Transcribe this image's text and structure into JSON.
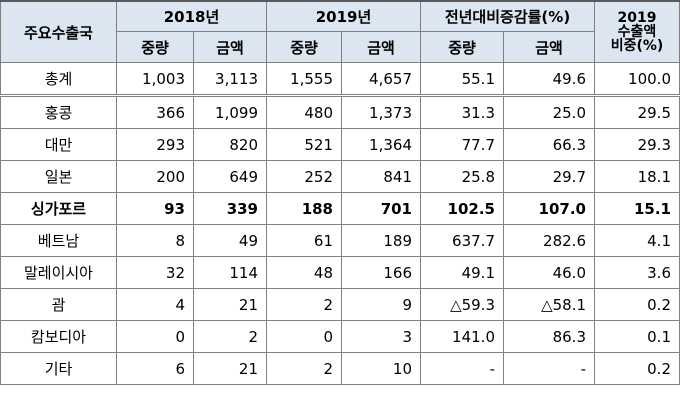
{
  "header": {
    "col_country": "주요수출국",
    "y2018": "2018년",
    "y2019": "2019년",
    "yoy": "전년대비증감률(%)",
    "share_line1": "2019",
    "share_line2": "수출액",
    "share_line3": "비중(%)",
    "qty": "중량",
    "amt": "금액"
  },
  "rows": [
    {
      "name": "총계",
      "q18": "1,003",
      "a18": "3,113",
      "q19": "1,555",
      "a19": "4,657",
      "yq": "55.1",
      "ya": "49.6",
      "share": "100.0"
    },
    {
      "name": "홍콩",
      "q18": "366",
      "a18": "1,099",
      "q19": "480",
      "a19": "1,373",
      "yq": "31.3",
      "ya": "25.0",
      "share": "29.5"
    },
    {
      "name": "대만",
      "q18": "293",
      "a18": "820",
      "q19": "521",
      "a19": "1,364",
      "yq": "77.7",
      "ya": "66.3",
      "share": "29.3"
    },
    {
      "name": "일본",
      "q18": "200",
      "a18": "649",
      "q19": "252",
      "a19": "841",
      "yq": "25.8",
      "ya": "29.7",
      "share": "18.1"
    },
    {
      "name": "싱가포르",
      "q18": "93",
      "a18": "339",
      "q19": "188",
      "a19": "701",
      "yq": "102.5",
      "ya": "107.0",
      "share": "15.1"
    },
    {
      "name": "베트남",
      "q18": "8",
      "a18": "49",
      "q19": "61",
      "a19": "189",
      "yq": "637.7",
      "ya": "282.6",
      "share": "4.1"
    },
    {
      "name": "말레이시아",
      "q18": "32",
      "a18": "114",
      "q19": "48",
      "a19": "166",
      "yq": "49.1",
      "ya": "46.0",
      "share": "3.6"
    },
    {
      "name": "괌",
      "q18": "4",
      "a18": "21",
      "q19": "2",
      "a19": "9",
      "yq": "△59.3",
      "ya": "△58.1",
      "share": "0.2"
    },
    {
      "name": "캄보디아",
      "q18": "0",
      "a18": "2",
      "q19": "0",
      "a19": "3",
      "yq": "141.0",
      "ya": "86.3",
      "share": "0.1"
    },
    {
      "name": "기타",
      "q18": "6",
      "a18": "21",
      "q19": "2",
      "a19": "10",
      "yq": "-",
      "ya": "-",
      "share": "0.2"
    }
  ]
}
